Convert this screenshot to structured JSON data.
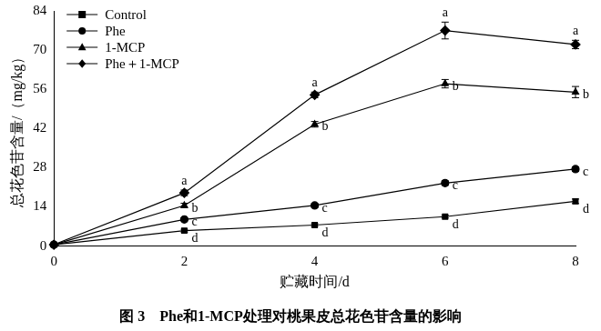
{
  "chart_data": {
    "type": "line",
    "title": "图 3　Phe和1-MCP处理对桃果皮总花色苷含量的影响",
    "x_label": "贮藏时间/d",
    "y_label": "总花色苷含量/（mg/kg）",
    "x": [
      0,
      2,
      4,
      6,
      8
    ],
    "xlim": [
      0,
      8
    ],
    "xticks": [
      0,
      2,
      4,
      6,
      8
    ],
    "ylim": [
      0,
      84
    ],
    "yticks": [
      0,
      14,
      28,
      42,
      56,
      70,
      84
    ],
    "grid": false,
    "legend": "upper left",
    "series": [
      {
        "name": "Control",
        "color": "#000000",
        "marker": "square",
        "line_style": "solid",
        "values": [
          0.5,
          5.5,
          7.5,
          10.5,
          16
        ],
        "errors": [
          0,
          0.5,
          0.5,
          0.5,
          0.8
        ],
        "significance": [
          null,
          "d",
          "d",
          "d",
          "d"
        ]
      },
      {
        "name": "Phe",
        "color": "#000000",
        "marker": "circle",
        "line_style": "solid",
        "values": [
          0.5,
          9.5,
          14.5,
          22.5,
          27.5
        ],
        "errors": [
          0,
          0.5,
          0.7,
          0.8,
          0.8
        ],
        "significance": [
          null,
          "c",
          "c",
          "c",
          "c"
        ]
      },
      {
        "name": "1-MCP",
        "color": "#000000",
        "marker": "triangle",
        "line_style": "solid",
        "values": [
          0.5,
          14.5,
          43.5,
          58,
          55
        ],
        "errors": [
          0,
          0.8,
          1,
          1.5,
          2
        ],
        "significance": [
          null,
          "b",
          "b",
          "b",
          "b"
        ]
      },
      {
        "name": "Phe＋1-MCP",
        "color": "#000000",
        "marker": "diamond",
        "line_style": "solid",
        "values": [
          0.5,
          19,
          54,
          77,
          72
        ],
        "errors": [
          0,
          1,
          1,
          3,
          1.5
        ],
        "significance": [
          null,
          "a",
          "a",
          "a",
          "a"
        ]
      }
    ]
  }
}
